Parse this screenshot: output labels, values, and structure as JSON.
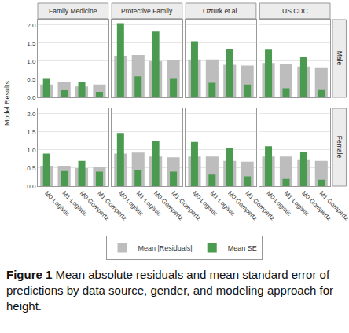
{
  "chart_data": {
    "type": "bar",
    "y_label": "Model Results",
    "caption": {
      "label": "Figure 1",
      "text": "Mean absolute residuals and mean standard error of predictions by data source, gender, and modeling approach for height."
    },
    "categories": [
      "M0-Logistic",
      "M1-Logistic",
      "M0-Gompertz",
      "M1-Gompertz"
    ],
    "columns": [
      "Family Medicine",
      "Protective Family",
      "Ozturk et al.",
      "US CDC"
    ],
    "rows": [
      "Male",
      "Female"
    ],
    "ylim": [
      0,
      2.15
    ],
    "yticks": [
      {
        "value": 0,
        "label": "0.0"
      },
      {
        "value": 0.5,
        "label": "0.5"
      },
      {
        "value": 1,
        "label": "1.0"
      },
      {
        "value": 1.5,
        "label": "1.5"
      },
      {
        "value": 2,
        "label": "2.0"
      }
    ],
    "grid": true,
    "legend": "bottom",
    "series": [
      {
        "name": "Mean |Residuals|",
        "color": "#bdbdbd",
        "values": [
          [
            [
              0.35,
              0.42,
              0.3,
              0.35
            ],
            [
              1.15,
              1.17,
              1.0,
              1.02
            ],
            [
              1.05,
              1.05,
              0.9,
              0.88
            ],
            [
              0.95,
              0.93,
              0.85,
              0.83
            ]
          ],
          [
            [
              0.55,
              0.55,
              0.5,
              0.52
            ],
            [
              0.9,
              0.93,
              0.82,
              0.8
            ],
            [
              0.82,
              0.82,
              0.7,
              0.68
            ],
            [
              0.82,
              0.82,
              0.72,
              0.7
            ]
          ]
        ]
      },
      {
        "name": "Mean SE",
        "color": "#4a9a4f",
        "values": [
          [
            [
              0.53,
              0.2,
              0.42,
              0.15
            ],
            [
              2.05,
              0.58,
              1.82,
              0.53
            ],
            [
              1.55,
              0.4,
              1.33,
              0.35
            ],
            [
              1.32,
              0.25,
              1.13,
              0.22
            ]
          ],
          [
            [
              0.9,
              0.42,
              0.7,
              0.4
            ],
            [
              1.47,
              0.45,
              1.25,
              0.4
            ],
            [
              1.22,
              0.32,
              1.05,
              0.27
            ],
            [
              1.1,
              0.2,
              0.95,
              0.18
            ]
          ]
        ]
      }
    ]
  }
}
